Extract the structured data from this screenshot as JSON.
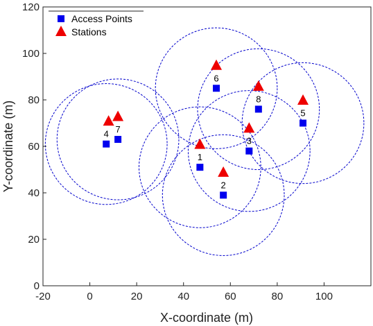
{
  "chart_data": {
    "type": "scatter",
    "xlabel": "X-coordinate (m)",
    "ylabel": "Y-coordinate (m)",
    "xlim": [
      -20,
      120
    ],
    "ylim": [
      0,
      120
    ],
    "xticks": [
      "-20",
      "0",
      "20",
      "40",
      "60",
      "80",
      "100"
    ],
    "yticks": [
      "0",
      "20",
      "40",
      "60",
      "80",
      "100",
      "120"
    ],
    "grid": false,
    "legend_position": "top-left",
    "colors": {
      "access_points": "#0000ee",
      "stations": "#ee0000",
      "coverage": "#0000cc"
    },
    "coverage_radius": 26,
    "series": [
      {
        "name": "Access Points",
        "marker": "square",
        "points": [
          {
            "label": "1",
            "x": 47,
            "y": 51
          },
          {
            "label": "2",
            "x": 57,
            "y": 39
          },
          {
            "label": "3",
            "x": 68,
            "y": 58
          },
          {
            "label": "4",
            "x": 7,
            "y": 61
          },
          {
            "label": "5",
            "x": 91,
            "y": 70
          },
          {
            "label": "6",
            "x": 54,
            "y": 85
          },
          {
            "label": "7",
            "x": 12,
            "y": 63
          },
          {
            "label": "8",
            "x": 72,
            "y": 76
          }
        ]
      },
      {
        "name": "Stations",
        "marker": "triangle",
        "points": [
          {
            "x": 47,
            "y": 61
          },
          {
            "x": 57,
            "y": 49
          },
          {
            "x": 68,
            "y": 68
          },
          {
            "x": 8,
            "y": 71
          },
          {
            "x": 91,
            "y": 80
          },
          {
            "x": 54,
            "y": 95
          },
          {
            "x": 12,
            "y": 73
          },
          {
            "x": 72,
            "y": 86
          }
        ]
      }
    ]
  }
}
